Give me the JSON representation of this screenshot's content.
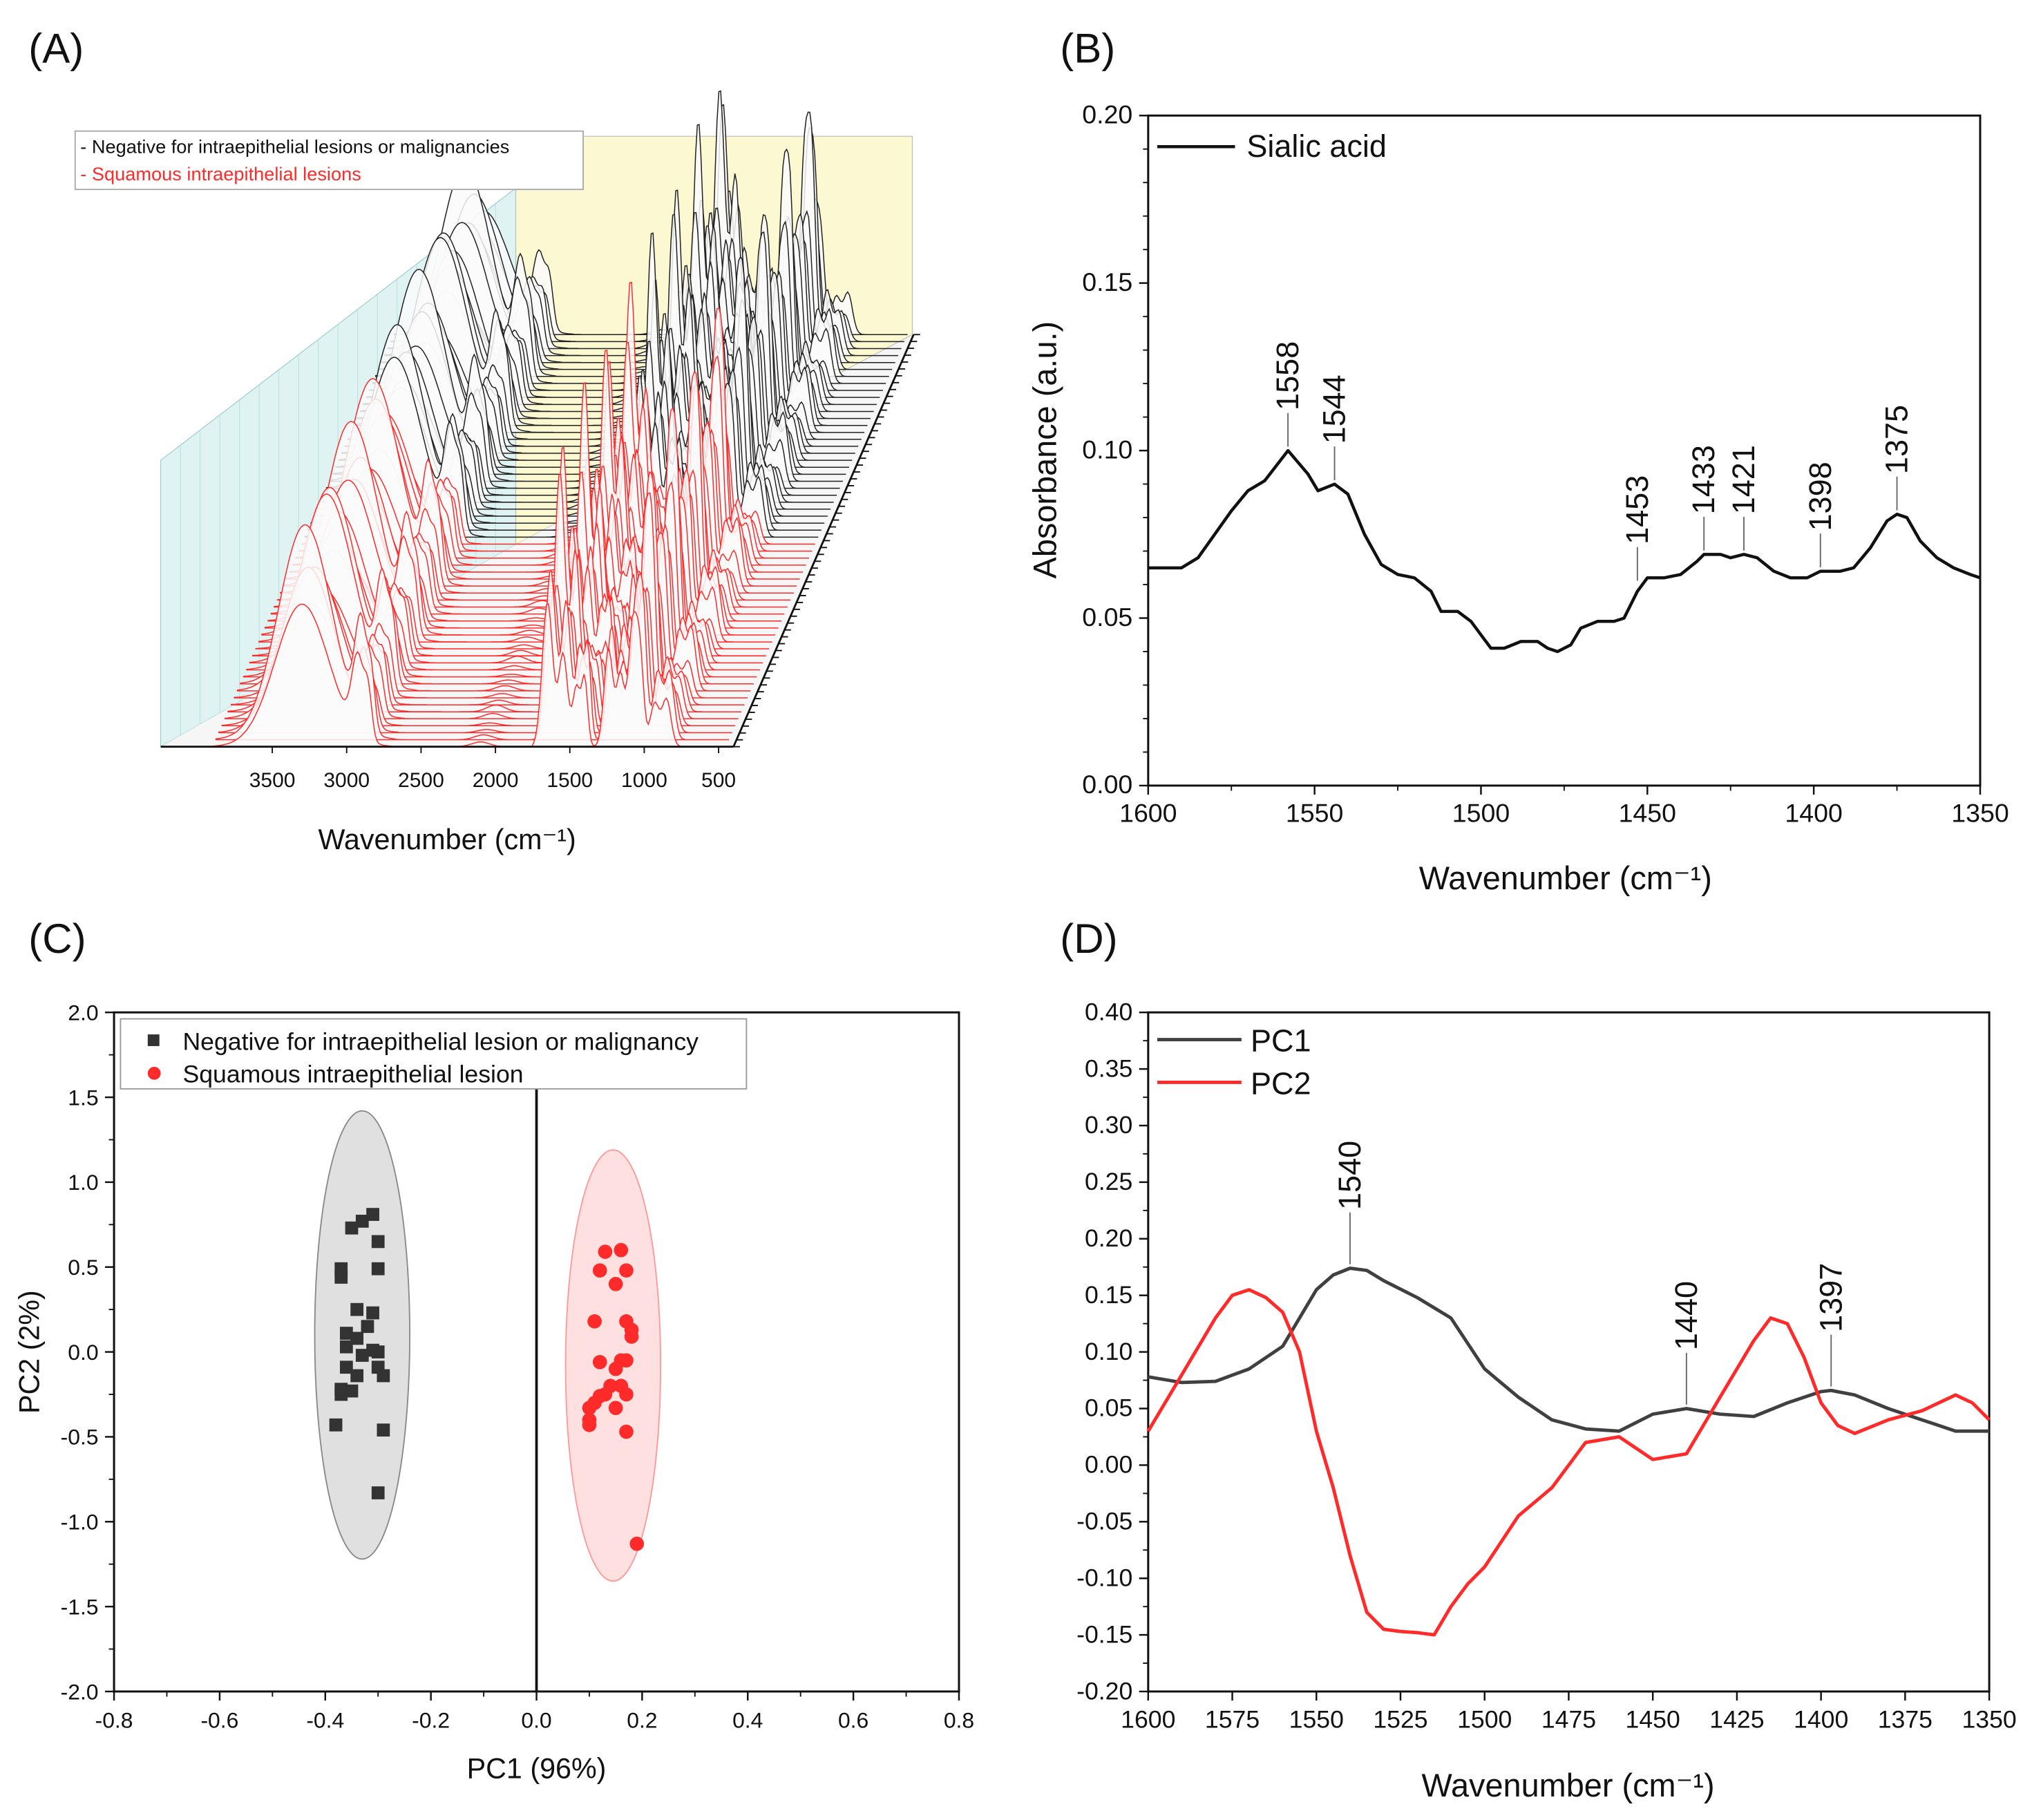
{
  "panel_labels": {
    "a": "(A)",
    "b": "(B)",
    "c": "(C)",
    "d": "(D)"
  },
  "colors": {
    "negative": "#333333",
    "lesion": "#ff2a2a",
    "pc1": "#404040",
    "pc2": "#ff2a2a",
    "cyan_wall": "#dff3f3",
    "yellow_wall": "#fbf8d2"
  },
  "chart_data": [
    {
      "id": "A",
      "type": "waterfall",
      "title": "",
      "xlabel": "Wavenumber (cm⁻¹)",
      "xlim": [
        4000,
        400
      ],
      "xticks": [
        "3500",
        "3000",
        "2500",
        "2000",
        "1500",
        "1000",
        "500"
      ],
      "xtick_values": [
        3500,
        3000,
        2500,
        2000,
        1500,
        1000,
        500
      ],
      "legend": [
        "- Negative for intraepithelial lesions or malignancies",
        "- Squamous intraepithelial lesions"
      ],
      "series": [
        {
          "name": "Negative for intraepithelial lesions or malignancies",
          "count": 30
        },
        {
          "name": "Squamous intraepithelial lesions",
          "count": 30
        }
      ]
    },
    {
      "id": "B",
      "type": "line",
      "xlabel": "Wavenumber (cm⁻¹)",
      "ylabel": "Absorbance (a.u.)",
      "xlim": [
        1600,
        1350
      ],
      "ylim": [
        0,
        0.2
      ],
      "xticks": [
        "1600",
        "1550",
        "1500",
        "1450",
        "1400",
        "1350"
      ],
      "yticks": [
        "0.00",
        "0.05",
        "0.10",
        "0.15",
        "0.20"
      ],
      "legend": [
        "Sialic acid"
      ],
      "series": [
        {
          "name": "Sialic acid",
          "x": [
            1600,
            1590,
            1585,
            1575,
            1570,
            1565,
            1558,
            1552,
            1549,
            1544,
            1540,
            1535,
            1530,
            1525,
            1520,
            1515,
            1512,
            1507,
            1503,
            1500,
            1497,
            1493,
            1488,
            1483,
            1480,
            1477,
            1473,
            1470,
            1465,
            1460,
            1457,
            1453,
            1450,
            1445,
            1440,
            1435,
            1433,
            1428,
            1425,
            1421,
            1417,
            1412,
            1407,
            1402,
            1398,
            1392,
            1388,
            1383,
            1378,
            1375,
            1372,
            1368,
            1363,
            1358,
            1353,
            1350
          ],
          "y": [
            0.065,
            0.065,
            0.068,
            0.082,
            0.088,
            0.091,
            0.1,
            0.093,
            0.088,
            0.09,
            0.087,
            0.075,
            0.066,
            0.063,
            0.062,
            0.058,
            0.052,
            0.052,
            0.049,
            0.045,
            0.041,
            0.041,
            0.043,
            0.043,
            0.041,
            0.04,
            0.042,
            0.047,
            0.049,
            0.049,
            0.05,
            0.058,
            0.062,
            0.062,
            0.063,
            0.067,
            0.069,
            0.069,
            0.068,
            0.069,
            0.068,
            0.064,
            0.062,
            0.062,
            0.064,
            0.064,
            0.065,
            0.071,
            0.079,
            0.081,
            0.08,
            0.073,
            0.068,
            0.065,
            0.063,
            0.062
          ]
        }
      ],
      "annotations": [
        {
          "label": "1558",
          "x": 1558,
          "y": 0.1
        },
        {
          "label": "1544",
          "x": 1544,
          "y": 0.09
        },
        {
          "label": "1453",
          "x": 1453,
          "y": 0.06
        },
        {
          "label": "1433",
          "x": 1433,
          "y": 0.069
        },
        {
          "label": "1421",
          "x": 1421,
          "y": 0.069
        },
        {
          "label": "1398",
          "x": 1398,
          "y": 0.064
        },
        {
          "label": "1375",
          "x": 1375,
          "y": 0.081
        }
      ]
    },
    {
      "id": "C",
      "type": "scatter",
      "xlabel": "PC1 (96%)",
      "ylabel": "PC2 (2%)",
      "xlim": [
        -0.8,
        0.8
      ],
      "ylim": [
        -2.0,
        2.0
      ],
      "xticks": [
        "-0.8",
        "-0.6",
        "-0.4",
        "-0.2",
        "0.0",
        "0.2",
        "0.4",
        "0.6",
        "0.8"
      ],
      "yticks": [
        "-2.0",
        "-1.5",
        "-1.0",
        "-0.5",
        "0.0",
        "0.5",
        "1.0",
        "1.5",
        "2.0"
      ],
      "legend": [
        "Negative for intraepithelial lesion or malignancy",
        "Squamous intraepithelial lesion"
      ],
      "series": [
        {
          "name": "Negative for intraepithelial lesion or malignancy",
          "marker": "square",
          "points": [
            [
              -0.31,
              0.81
            ],
            [
              -0.33,
              0.77
            ],
            [
              -0.35,
              0.73
            ],
            [
              -0.3,
              0.65
            ],
            [
              -0.37,
              0.49
            ],
            [
              -0.37,
              0.44
            ],
            [
              -0.3,
              0.49
            ],
            [
              -0.34,
              0.25
            ],
            [
              -0.31,
              0.23
            ],
            [
              -0.36,
              0.11
            ],
            [
              -0.34,
              0.08
            ],
            [
              -0.32,
              0.15
            ],
            [
              -0.36,
              0.03
            ],
            [
              -0.31,
              0.01
            ],
            [
              -0.3,
              0.0
            ],
            [
              -0.33,
              -0.02
            ],
            [
              -0.36,
              -0.09
            ],
            [
              -0.3,
              -0.09
            ],
            [
              -0.29,
              -0.14
            ],
            [
              -0.34,
              -0.14
            ],
            [
              -0.37,
              -0.22
            ],
            [
              -0.37,
              -0.25
            ],
            [
              -0.35,
              -0.23
            ],
            [
              -0.38,
              -0.43
            ],
            [
              -0.29,
              -0.46
            ],
            [
              -0.3,
              -0.83
            ]
          ],
          "ellipse": {
            "cx": -0.33,
            "cy": 0.1,
            "rx": 0.09,
            "ry": 1.32
          }
        },
        {
          "name": "Squamous intraepithelial lesion",
          "marker": "circle",
          "points": [
            [
              0.13,
              0.59
            ],
            [
              0.16,
              0.6
            ],
            [
              0.12,
              0.48
            ],
            [
              0.17,
              0.48
            ],
            [
              0.15,
              0.4
            ],
            [
              0.11,
              0.18
            ],
            [
              0.17,
              0.18
            ],
            [
              0.18,
              0.13
            ],
            [
              0.18,
              0.09
            ],
            [
              0.12,
              -0.06
            ],
            [
              0.16,
              -0.05
            ],
            [
              0.17,
              -0.05
            ],
            [
              0.15,
              -0.1
            ],
            [
              0.14,
              -0.2
            ],
            [
              0.16,
              -0.2
            ],
            [
              0.12,
              -0.26
            ],
            [
              0.11,
              -0.3
            ],
            [
              0.13,
              -0.25
            ],
            [
              0.17,
              -0.25
            ],
            [
              0.1,
              -0.33
            ],
            [
              0.15,
              -0.33
            ],
            [
              0.1,
              -0.4
            ],
            [
              0.1,
              -0.43
            ],
            [
              0.17,
              -0.47
            ],
            [
              0.19,
              -1.13
            ]
          ],
          "ellipse": {
            "cx": 0.145,
            "cy": -0.08,
            "rx": 0.09,
            "ry": 1.27
          }
        }
      ]
    },
    {
      "id": "D",
      "type": "line",
      "xlabel": "Wavenumber (cm⁻¹)",
      "ylabel": "",
      "xlim": [
        1600,
        1350
      ],
      "ylim": [
        -0.2,
        0.4
      ],
      "xticks": [
        "1600",
        "1575",
        "1550",
        "1525",
        "1500",
        "1475",
        "1450",
        "1425",
        "1400",
        "1375",
        "1350"
      ],
      "yticks": [
        "-0.20",
        "-0.15",
        "-0.10",
        "-0.05",
        "0.00",
        "0.05",
        "0.10",
        "0.15",
        "0.20",
        "0.25",
        "0.30",
        "0.35",
        "0.40"
      ],
      "legend": [
        "PC1",
        "PC2"
      ],
      "series": [
        {
          "name": "PC1",
          "x": [
            1600,
            1590,
            1580,
            1570,
            1560,
            1550,
            1545,
            1540,
            1535,
            1530,
            1520,
            1510,
            1500,
            1490,
            1480,
            1470,
            1460,
            1450,
            1440,
            1430,
            1420,
            1410,
            1400,
            1397,
            1390,
            1380,
            1370,
            1360,
            1350
          ],
          "y": [
            0.078,
            0.073,
            0.074,
            0.085,
            0.105,
            0.155,
            0.168,
            0.174,
            0.172,
            0.163,
            0.148,
            0.13,
            0.085,
            0.06,
            0.04,
            0.032,
            0.03,
            0.045,
            0.05,
            0.045,
            0.043,
            0.055,
            0.065,
            0.066,
            0.062,
            0.05,
            0.04,
            0.03,
            0.03
          ]
        },
        {
          "name": "PC2",
          "x": [
            1600,
            1590,
            1580,
            1575,
            1570,
            1565,
            1560,
            1555,
            1550,
            1545,
            1540,
            1535,
            1530,
            1525,
            1520,
            1515,
            1510,
            1505,
            1500,
            1490,
            1480,
            1470,
            1460,
            1450,
            1440,
            1430,
            1420,
            1415,
            1410,
            1405,
            1400,
            1395,
            1390,
            1380,
            1370,
            1360,
            1355,
            1350
          ],
          "y": [
            0.03,
            0.08,
            0.13,
            0.15,
            0.155,
            0.148,
            0.135,
            0.1,
            0.03,
            -0.02,
            -0.08,
            -0.13,
            -0.145,
            -0.147,
            -0.148,
            -0.15,
            -0.125,
            -0.105,
            -0.09,
            -0.045,
            -0.02,
            0.02,
            0.025,
            0.005,
            0.01,
            0.06,
            0.11,
            0.13,
            0.125,
            0.095,
            0.055,
            0.035,
            0.028,
            0.04,
            0.048,
            0.062,
            0.055,
            0.04
          ]
        }
      ],
      "annotations": [
        {
          "label": "1540",
          "x": 1540,
          "y": 0.174
        },
        {
          "label": "1440",
          "x": 1440,
          "y": 0.05
        },
        {
          "label": "1397",
          "x": 1397,
          "y": 0.066
        }
      ]
    }
  ]
}
